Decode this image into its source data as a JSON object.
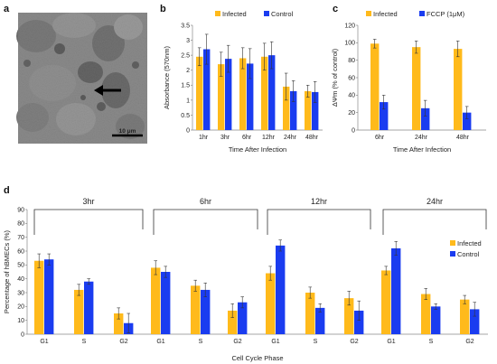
{
  "colors": {
    "infected": "#FFBA1B",
    "control": "#1A3CF0",
    "fccp": "#1A3CF0"
  },
  "panels": {
    "a": {
      "label": "a",
      "scale_bar": "10 μm"
    },
    "b": {
      "label": "b"
    },
    "c": {
      "label": "c"
    },
    "d": {
      "label": "d"
    }
  },
  "chart_data": [
    {
      "id": "b",
      "type": "bar",
      "categories": [
        "1hr",
        "3hr",
        "6hr",
        "12hr",
        "24hr",
        "48hr"
      ],
      "series": [
        {
          "name": "Infected",
          "values": [
            2.45,
            2.2,
            2.4,
            2.45,
            1.45,
            1.3
          ],
          "errors": [
            0.3,
            0.4,
            0.35,
            0.45,
            0.45,
            0.2
          ]
        },
        {
          "name": "Control",
          "values": [
            2.7,
            2.38,
            2.22,
            2.5,
            1.3,
            1.27
          ],
          "errors": [
            0.5,
            0.45,
            0.5,
            0.45,
            0.35,
            0.35
          ]
        }
      ],
      "xlabel": "Time After Infection",
      "ylabel": "Absorbance (570nm)",
      "ylim": [
        0,
        3.5
      ],
      "yticks": [
        "0",
        "0.5",
        "1",
        "1.5",
        "2",
        "2.5",
        "3",
        "3.5"
      ],
      "legend": "top"
    },
    {
      "id": "c",
      "type": "bar",
      "categories": [
        "6hr",
        "24hr",
        "48hr"
      ],
      "series": [
        {
          "name": "Infected",
          "values": [
            99,
            95,
            93
          ],
          "errors": [
            5,
            7,
            9
          ]
        },
        {
          "name": "FCCP (1μM)",
          "values": [
            32,
            25,
            20
          ],
          "errors": [
            8,
            9,
            7
          ]
        }
      ],
      "xlabel": "Time After Infection",
      "ylabel": "ΔΨm (% of control)",
      "ylim": [
        0,
        120
      ],
      "yticks": [
        "0",
        "20",
        "40",
        "60",
        "80",
        "100",
        "120"
      ],
      "legend": "top"
    },
    {
      "id": "d",
      "type": "bar",
      "categories": [
        "G1",
        "S",
        "G2",
        "G1",
        "S",
        "G2",
        "G1",
        "S",
        "G2",
        "G1",
        "S",
        "G2"
      ],
      "groups": [
        "3hr",
        "6hr",
        "12hr",
        "24hr"
      ],
      "series": [
        {
          "name": "Infected",
          "values": [
            53,
            32,
            15,
            48,
            35,
            17,
            44,
            30,
            26,
            46,
            29,
            25
          ],
          "errors": [
            5,
            4,
            4,
            5,
            4,
            5,
            5,
            4,
            5,
            3,
            4,
            3
          ]
        },
        {
          "name": "Control",
          "values": [
            54,
            38,
            8,
            45,
            32,
            23,
            64,
            19,
            17,
            62,
            20,
            18
          ],
          "errors": [
            4,
            2,
            7,
            4,
            5,
            4,
            4,
            3,
            7,
            5,
            2,
            5
          ]
        }
      ],
      "xlabel": "Cell Cycle Phase",
      "ylabel": "Percentage of hBMECs (%)",
      "ylim": [
        0,
        90
      ],
      "yticks": [
        "0",
        "10",
        "20",
        "30",
        "40",
        "50",
        "60",
        "70",
        "80",
        "90"
      ],
      "legend": "right"
    }
  ]
}
